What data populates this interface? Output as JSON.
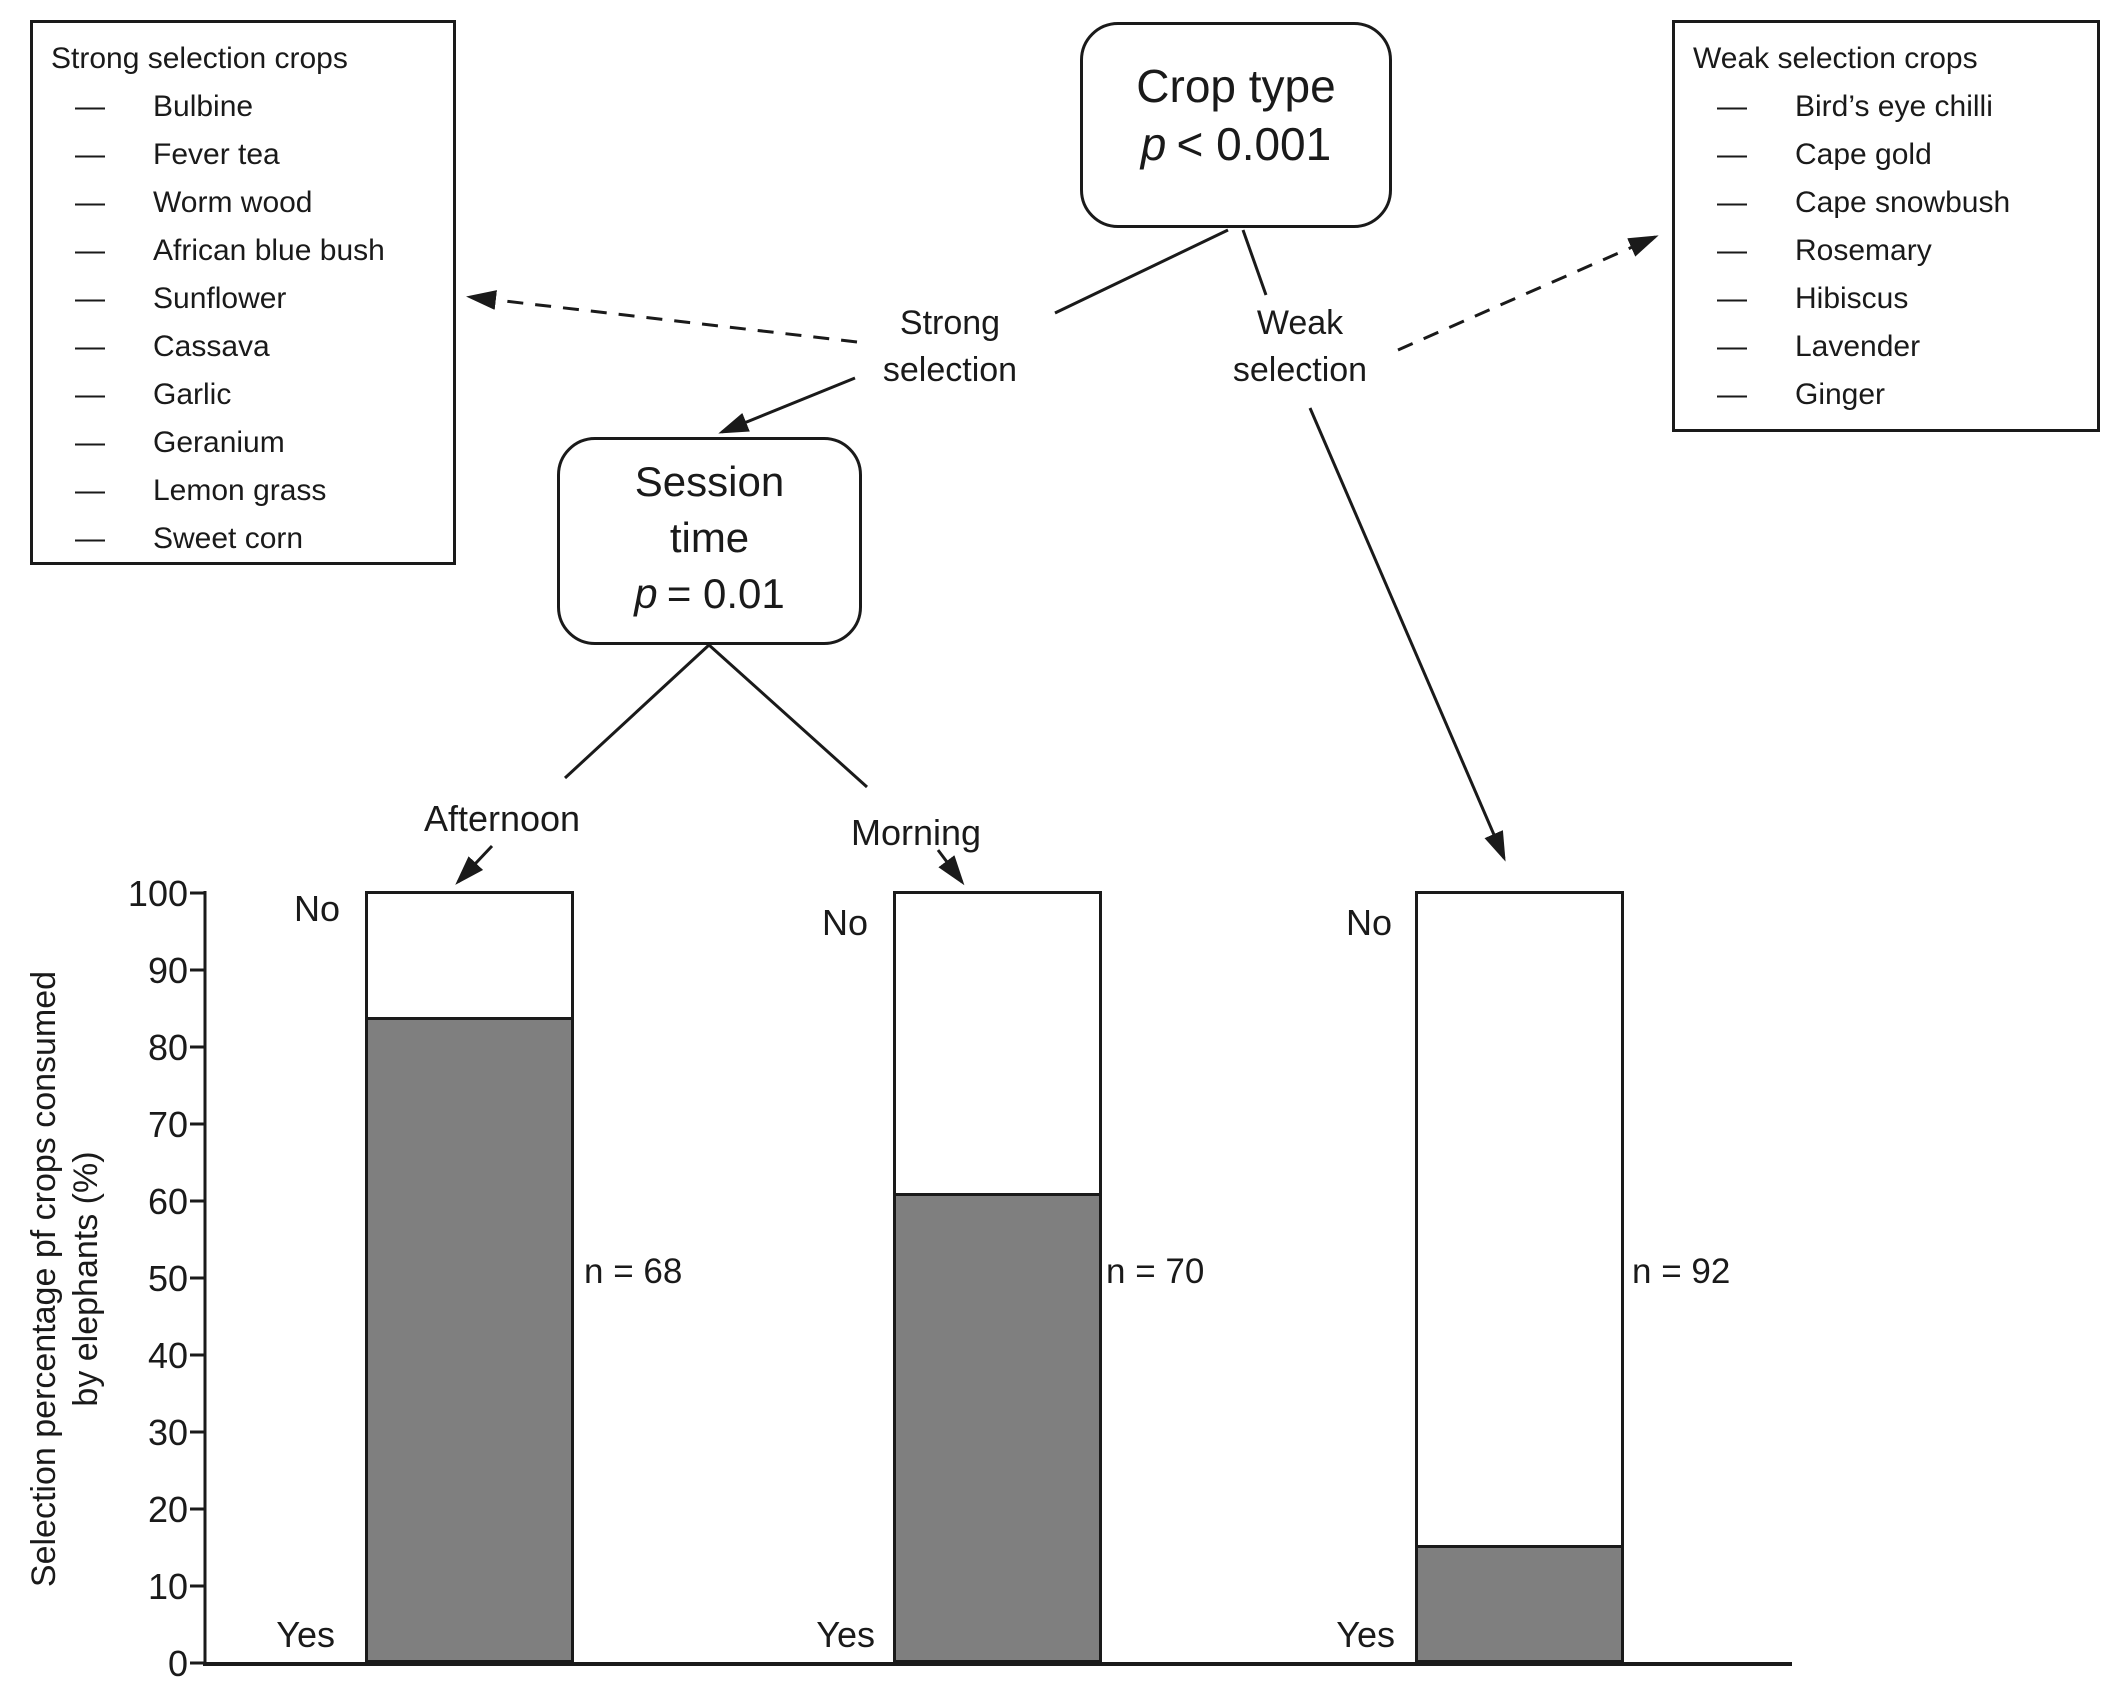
{
  "ui": {
    "dash": "—"
  },
  "strong_box": {
    "title": "Strong selection crops",
    "items": [
      "Bulbine",
      "Fever tea",
      "Worm wood",
      "African blue bush",
      "Sunflower",
      "Cassava",
      "Garlic",
      "Geranium",
      "Lemon grass",
      "Sweet corn"
    ]
  },
  "weak_box": {
    "title": "Weak selection crops",
    "items": [
      "Bird’s eye chilli",
      "Cape gold",
      "Cape snowbush",
      "Rosemary",
      "Hibiscus",
      "Lavender",
      "Ginger"
    ]
  },
  "tree": {
    "root": {
      "title": "Crop type",
      "p_symbol": "p",
      "p_value": "< 0.001"
    },
    "session": {
      "line1": "Session",
      "line2": "time",
      "p_symbol": "p",
      "p_value": "= 0.01"
    },
    "branch_strong": {
      "line1": "Strong",
      "line2": "selection"
    },
    "branch_weak": {
      "line1": "Weak",
      "line2": "selection"
    },
    "leaf_afternoon": "Afternoon",
    "leaf_morning": "Morning"
  },
  "chart_data": {
    "type": "bar",
    "stacked": true,
    "categories": [
      "Afternoon",
      "Morning",
      "Weak selection"
    ],
    "series": [
      {
        "name": "Yes",
        "values": [
          84,
          61,
          15
        ],
        "color": "#7f7f7f"
      },
      {
        "name": "No",
        "values": [
          16,
          39,
          85
        ],
        "color": "#ffffff"
      }
    ],
    "n": [
      68,
      70,
      92
    ],
    "n_labels": [
      "n = 68",
      "n = 70",
      "n = 92"
    ],
    "segment_label_top": "No",
    "segment_label_bottom": "Yes",
    "ylabel_line1": "Selection percentage pf crops consumed",
    "ylabel_line2": "by elephants (%)",
    "ylim": [
      0,
      100
    ],
    "yticks": [
      0,
      10,
      20,
      30,
      40,
      50,
      60,
      70,
      80,
      90,
      100
    ],
    "grid": false,
    "legend": false
  },
  "colors": {
    "bar_yes_fill": "#7f7f7f",
    "bar_no_fill": "#ffffff",
    "line": "#1a1a1a"
  }
}
